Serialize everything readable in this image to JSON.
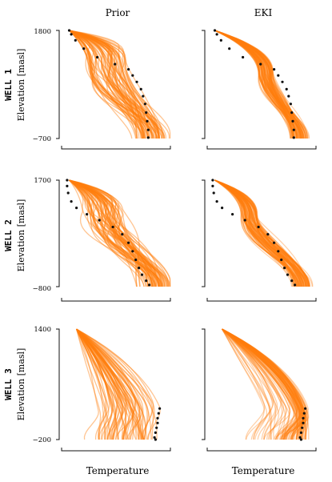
{
  "columns": [
    "Prior",
    "EKI"
  ],
  "x_label": "Temperature",
  "colors": {
    "ensemble": "#ff7f0e",
    "data": "#111111",
    "axis": "#111111"
  },
  "chart_data": [
    {
      "type": "line",
      "row": 0,
      "well_label": "WELL 1",
      "ylabel": "Elevation [masl]",
      "ylim": [
        -700,
        1800
      ],
      "ytick_labels": [
        "1800",
        "−700"
      ],
      "observations": [
        {
          "t": 0.05,
          "z": 1800
        },
        {
          "t": 0.07,
          "z": 1710
        },
        {
          "t": 0.11,
          "z": 1570
        },
        {
          "t": 0.19,
          "z": 1380
        },
        {
          "t": 0.32,
          "z": 1180
        },
        {
          "t": 0.49,
          "z": 1020
        },
        {
          "t": 0.62,
          "z": 900
        },
        {
          "t": 0.66,
          "z": 760
        },
        {
          "t": 0.7,
          "z": 610
        },
        {
          "t": 0.74,
          "z": 440
        },
        {
          "t": 0.76,
          "z": 280
        },
        {
          "t": 0.78,
          "z": 100
        },
        {
          "t": 0.79,
          "z": -100
        },
        {
          "t": 0.8,
          "z": -300
        },
        {
          "t": 0.81,
          "z": -500
        },
        {
          "t": 0.81,
          "z": -680
        }
      ]
    },
    {
      "type": "line",
      "row": 1,
      "well_label": "WELL 2",
      "ylabel": "Elevation [masl]",
      "ylim": [
        -800,
        1700
      ],
      "ytick_labels": [
        "1700",
        "−800"
      ],
      "observations": [
        {
          "t": 0.03,
          "z": 1700
        },
        {
          "t": 0.03,
          "z": 1560
        },
        {
          "t": 0.04,
          "z": 1400
        },
        {
          "t": 0.07,
          "z": 1200
        },
        {
          "t": 0.12,
          "z": 1050
        },
        {
          "t": 0.22,
          "z": 900
        },
        {
          "t": 0.34,
          "z": 760
        },
        {
          "t": 0.47,
          "z": 600
        },
        {
          "t": 0.56,
          "z": 430
        },
        {
          "t": 0.62,
          "z": 230
        },
        {
          "t": 0.66,
          "z": 30
        },
        {
          "t": 0.69,
          "z": -170
        },
        {
          "t": 0.72,
          "z": -360
        },
        {
          "t": 0.75,
          "z": -520
        },
        {
          "t": 0.79,
          "z": -660
        },
        {
          "t": 0.82,
          "z": -760
        }
      ]
    },
    {
      "type": "line",
      "row": 2,
      "well_label": "WELL 3",
      "ylabel": "Elevation [masl]",
      "ylim": [
        -200,
        1400
      ],
      "ytick_labels": [
        "1400",
        "−200"
      ],
      "observations": [
        {
          "t": 0.92,
          "z": 250
        },
        {
          "t": 0.91,
          "z": 180
        },
        {
          "t": 0.9,
          "z": 110
        },
        {
          "t": 0.9,
          "z": 40
        },
        {
          "t": 0.89,
          "z": -30
        },
        {
          "t": 0.88,
          "z": -100
        },
        {
          "t": 0.87,
          "z": -170
        },
        {
          "t": 0.88,
          "z": -200
        }
      ]
    }
  ]
}
